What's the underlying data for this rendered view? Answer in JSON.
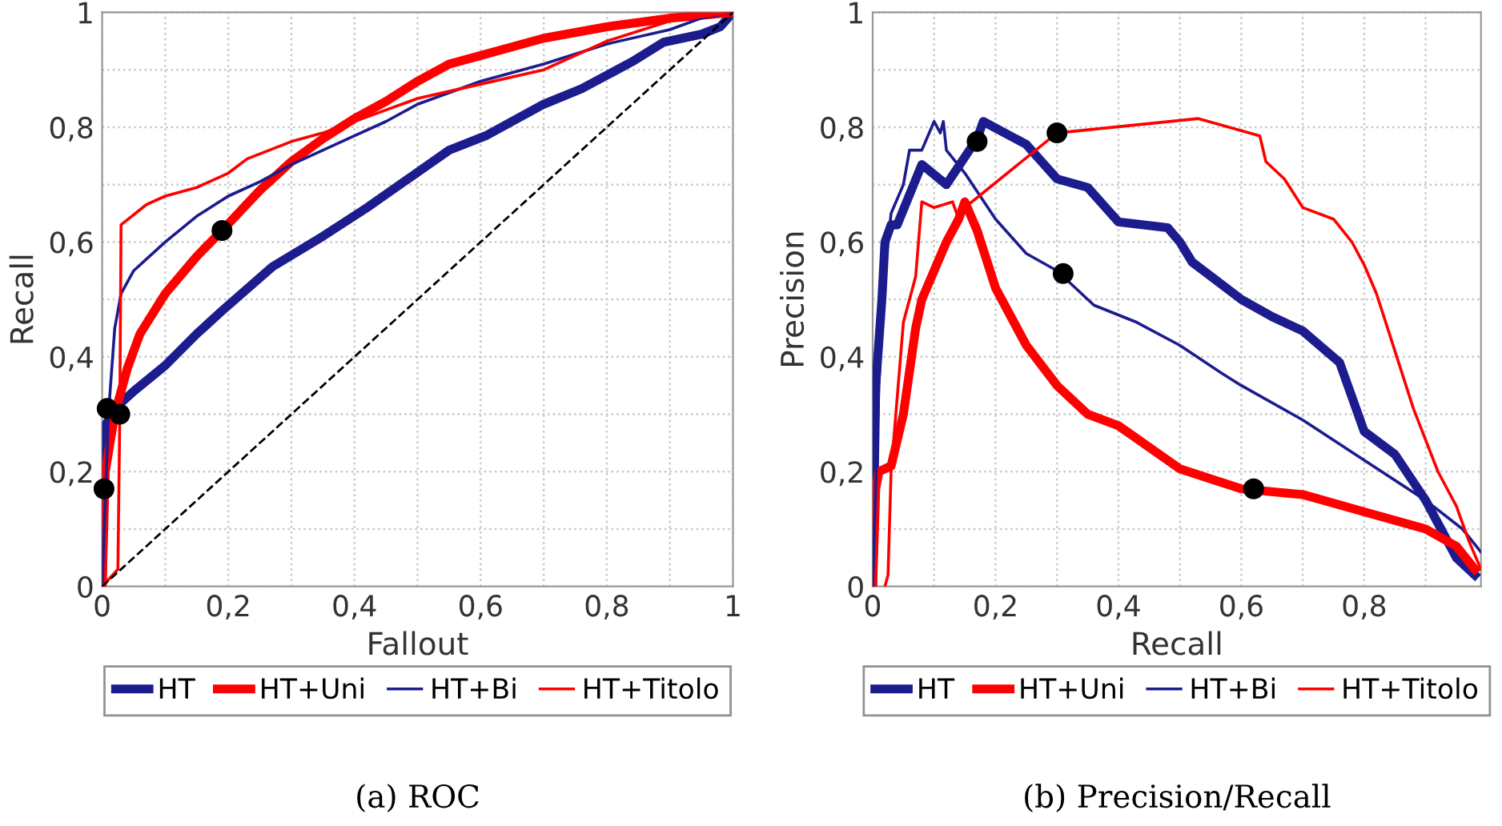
{
  "chart_data": [
    {
      "type": "line",
      "title": "(a) ROC",
      "xlabel": "Fallout",
      "ylabel": "Recall",
      "xlim": [
        0,
        1
      ],
      "ylim": [
        0,
        1
      ],
      "xticks": [
        0,
        {
          "value": 0.1,
          "label": null
        },
        {
          "value": 0.2,
          "label": "0,2"
        },
        {
          "value": 0.3,
          "label": null
        },
        {
          "value": 0.4,
          "label": "0,4"
        },
        {
          "value": 0.5,
          "label": null
        },
        {
          "value": 0.6,
          "label": "0,6"
        },
        {
          "value": 0.7,
          "label": null
        },
        {
          "value": 0.8,
          "label": "0,8"
        },
        {
          "value": 0.9,
          "label": null
        },
        1
      ],
      "yticks": [
        0,
        {
          "value": 0.1,
          "label": null
        },
        {
          "value": 0.2,
          "label": "0,2"
        },
        {
          "value": 0.3,
          "label": null
        },
        {
          "value": 0.4,
          "label": "0,4"
        },
        {
          "value": 0.5,
          "label": null
        },
        {
          "value": 0.6,
          "label": "0,6"
        },
        {
          "value": 0.7,
          "label": null
        },
        {
          "value": 0.8,
          "label": "0,8"
        },
        {
          "value": 0.9,
          "label": null
        },
        1
      ],
      "grid": true,
      "legend": "bottom",
      "line_style": "solid",
      "series": [
        {
          "name": "HT",
          "color": "#1c1c8f",
          "x": [
            0,
            0.005,
            0.02,
            0.05,
            0.1,
            0.15,
            0.19,
            0.27,
            0.35,
            0.42,
            0.55,
            0.61,
            0.7,
            0.76,
            0.84,
            0.89,
            0.95,
            0.98,
            1
          ],
          "values": [
            0,
            0.28,
            0.31,
            0.34,
            0.385,
            0.44,
            0.48,
            0.557,
            0.61,
            0.66,
            0.76,
            0.786,
            0.84,
            0.867,
            0.914,
            0.948,
            0.962,
            0.975,
            1
          ]
        },
        {
          "name": "HT+Uni",
          "color": "#ff0000",
          "x": [
            0,
            0.005,
            0.02,
            0.04,
            0.06,
            0.1,
            0.15,
            0.19,
            0.25,
            0.3,
            0.35,
            0.4,
            0.45,
            0.5,
            0.55,
            0.6,
            0.7,
            0.8,
            0.9,
            1
          ],
          "values": [
            0,
            0.2,
            0.3,
            0.38,
            0.44,
            0.51,
            0.575,
            0.62,
            0.69,
            0.74,
            0.78,
            0.815,
            0.845,
            0.88,
            0.91,
            0.925,
            0.955,
            0.975,
            0.99,
            1
          ]
        },
        {
          "name": "HT+Bi",
          "color": "#1c1c8f",
          "x": [
            0,
            0.01,
            0.02,
            0.03,
            0.05,
            0.07,
            0.1,
            0.15,
            0.2,
            0.25,
            0.3,
            0.35,
            0.4,
            0.45,
            0.5,
            0.6,
            0.7,
            0.8,
            0.9,
            0.95,
            1
          ],
          "values": [
            0,
            0.3,
            0.45,
            0.51,
            0.55,
            0.57,
            0.6,
            0.645,
            0.68,
            0.705,
            0.735,
            0.76,
            0.785,
            0.81,
            0.84,
            0.88,
            0.91,
            0.945,
            0.97,
            0.99,
            1
          ]
        },
        {
          "name": "HT+Titolo",
          "color": "#ff0000",
          "x": [
            0,
            0.025,
            0.028,
            0.03,
            0.07,
            0.1,
            0.15,
            0.2,
            0.23,
            0.3,
            0.35,
            0.4,
            0.45,
            0.5,
            0.6,
            0.7,
            0.75,
            0.8,
            0.9,
            1
          ],
          "values": [
            0,
            0.03,
            0.3,
            0.63,
            0.665,
            0.68,
            0.695,
            0.72,
            0.745,
            0.775,
            0.79,
            0.81,
            0.83,
            0.85,
            0.875,
            0.9,
            0.925,
            0.95,
            0.985,
            1
          ]
        },
        {
          "type": "line",
          "color": "#000000",
          "line_style": "dashed",
          "x": [
            0,
            1
          ],
          "values": [
            0,
            1
          ]
        },
        {
          "type": "scatter",
          "color": "#000000",
          "marker": "circle",
          "x": [
            0.003,
            0.008,
            0.028,
            0.19
          ],
          "values": [
            0.17,
            0.31,
            0.3,
            0.62
          ]
        }
      ]
    },
    {
      "type": "line",
      "title": "(b) Precision/Recall",
      "xlabel": "Recall",
      "ylabel": "Precision",
      "xlim": [
        0,
        0.99
      ],
      "ylim": [
        0,
        1
      ],
      "xticks": [
        0,
        {
          "value": 0.1,
          "label": null
        },
        {
          "value": 0.2,
          "label": "0,2"
        },
        {
          "value": 0.3,
          "label": null
        },
        {
          "value": 0.4,
          "label": "0,4"
        },
        {
          "value": 0.5,
          "label": null
        },
        {
          "value": 0.6,
          "label": "0,6"
        },
        {
          "value": 0.7,
          "label": null
        },
        {
          "value": 0.8,
          "label": "0,8"
        },
        {
          "value": 0.9,
          "label": null
        }
      ],
      "yticks": [
        0,
        {
          "value": 0.1,
          "label": null
        },
        {
          "value": 0.2,
          "label": "0,2"
        },
        {
          "value": 0.3,
          "label": null
        },
        {
          "value": 0.4,
          "label": "0,4"
        },
        {
          "value": 0.5,
          "label": null
        },
        {
          "value": 0.6,
          "label": "0,6"
        },
        {
          "value": 0.7,
          "label": null
        },
        {
          "value": 0.8,
          "label": "0,8"
        },
        {
          "value": 0.9,
          "label": null
        },
        1
      ],
      "grid": true,
      "legend": "bottom",
      "line_style": "solid",
      "series": [
        {
          "name": "HT",
          "color": "#1c1c8f",
          "x": [
            0,
            0.005,
            0.015,
            0.02,
            0.03,
            0.04,
            0.08,
            0.12,
            0.17,
            0.18,
            0.25,
            0.3,
            0.35,
            0.4,
            0.48,
            0.5,
            0.52,
            0.6,
            0.65,
            0.7,
            0.76,
            0.8,
            0.85,
            0.9,
            0.95,
            0.98
          ],
          "values": [
            0,
            0.35,
            0.5,
            0.6,
            0.63,
            0.63,
            0.735,
            0.7,
            0.78,
            0.81,
            0.77,
            0.71,
            0.695,
            0.635,
            0.625,
            0.6,
            0.565,
            0.5,
            0.47,
            0.445,
            0.39,
            0.27,
            0.23,
            0.15,
            0.05,
            0.02
          ]
        },
        {
          "name": "HT+Uni",
          "color": "#ff0000",
          "x": [
            0,
            0.005,
            0.01,
            0.03,
            0.05,
            0.07,
            0.08,
            0.1,
            0.12,
            0.14,
            0.15,
            0.17,
            0.2,
            0.25,
            0.3,
            0.35,
            0.4,
            0.5,
            0.6,
            0.7,
            0.8,
            0.9,
            0.95,
            0.98
          ],
          "values": [
            0,
            0.17,
            0.2,
            0.21,
            0.3,
            0.45,
            0.5,
            0.55,
            0.6,
            0.64,
            0.67,
            0.62,
            0.52,
            0.42,
            0.35,
            0.3,
            0.28,
            0.205,
            0.17,
            0.16,
            0.13,
            0.1,
            0.07,
            0.03
          ]
        },
        {
          "name": "HT+Bi",
          "color": "#1c1c8f",
          "x": [
            0,
            0.01,
            0.02,
            0.03,
            0.05,
            0.06,
            0.08,
            0.1,
            0.11,
            0.115,
            0.12,
            0.15,
            0.2,
            0.25,
            0.3,
            0.36,
            0.43,
            0.5,
            0.57,
            0.6,
            0.7,
            0.8,
            0.9,
            0.96,
            0.99
          ],
          "values": [
            0,
            0.35,
            0.55,
            0.65,
            0.7,
            0.76,
            0.76,
            0.81,
            0.79,
            0.81,
            0.76,
            0.72,
            0.64,
            0.58,
            0.55,
            0.49,
            0.46,
            0.42,
            0.37,
            0.35,
            0.29,
            0.22,
            0.15,
            0.1,
            0.06
          ]
        },
        {
          "name": "HT+Titolo",
          "color": "#ff0000",
          "x": [
            0.02,
            0.025,
            0.03,
            0.05,
            0.07,
            0.08,
            0.1,
            0.13,
            0.14,
            0.15,
            0.3,
            0.53,
            0.63,
            0.64,
            0.67,
            0.7,
            0.75,
            0.78,
            0.8,
            0.82,
            0.85,
            0.88,
            0.92,
            0.95,
            0.97,
            0.99
          ],
          "values": [
            0,
            0.02,
            0.2,
            0.46,
            0.54,
            0.67,
            0.66,
            0.67,
            0.64,
            0.66,
            0.79,
            0.815,
            0.785,
            0.74,
            0.71,
            0.66,
            0.64,
            0.6,
            0.56,
            0.51,
            0.41,
            0.31,
            0.2,
            0.14,
            0.08,
            0.03
          ]
        },
        {
          "type": "scatter",
          "color": "#000000",
          "marker": "circle",
          "x": [
            0.17,
            0.3,
            0.31,
            0.62
          ],
          "values": [
            0.775,
            0.79,
            0.545,
            0.17
          ]
        }
      ]
    }
  ]
}
